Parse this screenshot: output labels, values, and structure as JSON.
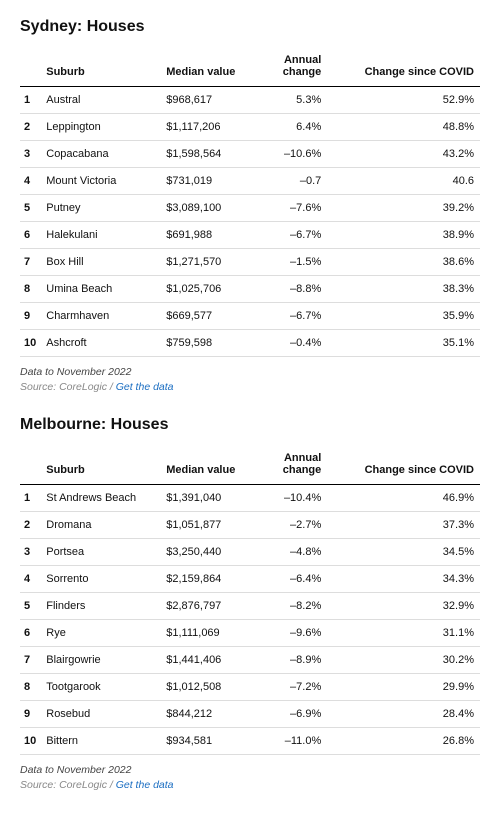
{
  "link_color": "#1b6ec2",
  "sections": [
    {
      "title": "Sydney: Houses",
      "columns": {
        "rank": "",
        "suburb": "Suburb",
        "median": "Median value",
        "annual": "Annual change",
        "covid": "Change since COVID"
      },
      "rows": [
        {
          "rank": "1",
          "suburb": "Austral",
          "median": "$968,617",
          "annual": "5.3%",
          "covid": "52.9%"
        },
        {
          "rank": "2",
          "suburb": "Leppington",
          "median": "$1,117,206",
          "annual": "6.4%",
          "covid": "48.8%"
        },
        {
          "rank": "3",
          "suburb": "Copacabana",
          "median": "$1,598,564",
          "annual": "–10.6%",
          "covid": "43.2%"
        },
        {
          "rank": "4",
          "suburb": "Mount Victoria",
          "median": "$731,019",
          "annual": "–0.7",
          "covid": "40.6"
        },
        {
          "rank": "5",
          "suburb": "Putney",
          "median": "$3,089,100",
          "annual": "–7.6%",
          "covid": "39.2%"
        },
        {
          "rank": "6",
          "suburb": "Halekulani",
          "median": "$691,988",
          "annual": "–6.7%",
          "covid": "38.9%"
        },
        {
          "rank": "7",
          "suburb": "Box Hill",
          "median": "$1,271,570",
          "annual": "–1.5%",
          "covid": "38.6%"
        },
        {
          "rank": "8",
          "suburb": "Umina Beach",
          "median": "$1,025,706",
          "annual": "–8.8%",
          "covid": "38.3%"
        },
        {
          "rank": "9",
          "suburb": "Charmhaven",
          "median": "$669,577",
          "annual": "–6.7%",
          "covid": "35.9%"
        },
        {
          "rank": "10",
          "suburb": "Ashcroft",
          "median": "$759,598",
          "annual": "–0.4%",
          "covid": "35.1%"
        }
      ],
      "meta": {
        "date": "Data to November 2022",
        "source_label": "Source: CoreLogic / ",
        "link_text": "Get the data"
      }
    },
    {
      "title": "Melbourne: Houses",
      "columns": {
        "rank": "",
        "suburb": "Suburb",
        "median": "Median value",
        "annual": "Annual change",
        "covid": "Change since COVID"
      },
      "rows": [
        {
          "rank": "1",
          "suburb": "St Andrews Beach",
          "median": "$1,391,040",
          "annual": "–10.4%",
          "covid": "46.9%"
        },
        {
          "rank": "2",
          "suburb": "Dromana",
          "median": "$1,051,877",
          "annual": "–2.7%",
          "covid": "37.3%"
        },
        {
          "rank": "3",
          "suburb": "Portsea",
          "median": "$3,250,440",
          "annual": "–4.8%",
          "covid": "34.5%"
        },
        {
          "rank": "4",
          "suburb": "Sorrento",
          "median": "$2,159,864",
          "annual": "–6.4%",
          "covid": "34.3%"
        },
        {
          "rank": "5",
          "suburb": "Flinders",
          "median": "$2,876,797",
          "annual": "–8.2%",
          "covid": "32.9%"
        },
        {
          "rank": "6",
          "suburb": "Rye",
          "median": "$1,111,069",
          "annual": "–9.6%",
          "covid": "31.1%"
        },
        {
          "rank": "7",
          "suburb": "Blairgowrie",
          "median": "$1,441,406",
          "annual": "–8.9%",
          "covid": "30.2%"
        },
        {
          "rank": "8",
          "suburb": "Tootgarook",
          "median": "$1,012,508",
          "annual": "–7.2%",
          "covid": "29.9%"
        },
        {
          "rank": "9",
          "suburb": "Rosebud",
          "median": "$844,212",
          "annual": "–6.9%",
          "covid": "28.4%"
        },
        {
          "rank": "10",
          "suburb": "Bittern",
          "median": "$934,581",
          "annual": "–11.0%",
          "covid": "26.8%"
        }
      ],
      "meta": {
        "date": "Data to November 2022",
        "source_label": "Source: CoreLogic / ",
        "link_text": "Get the data"
      }
    }
  ]
}
